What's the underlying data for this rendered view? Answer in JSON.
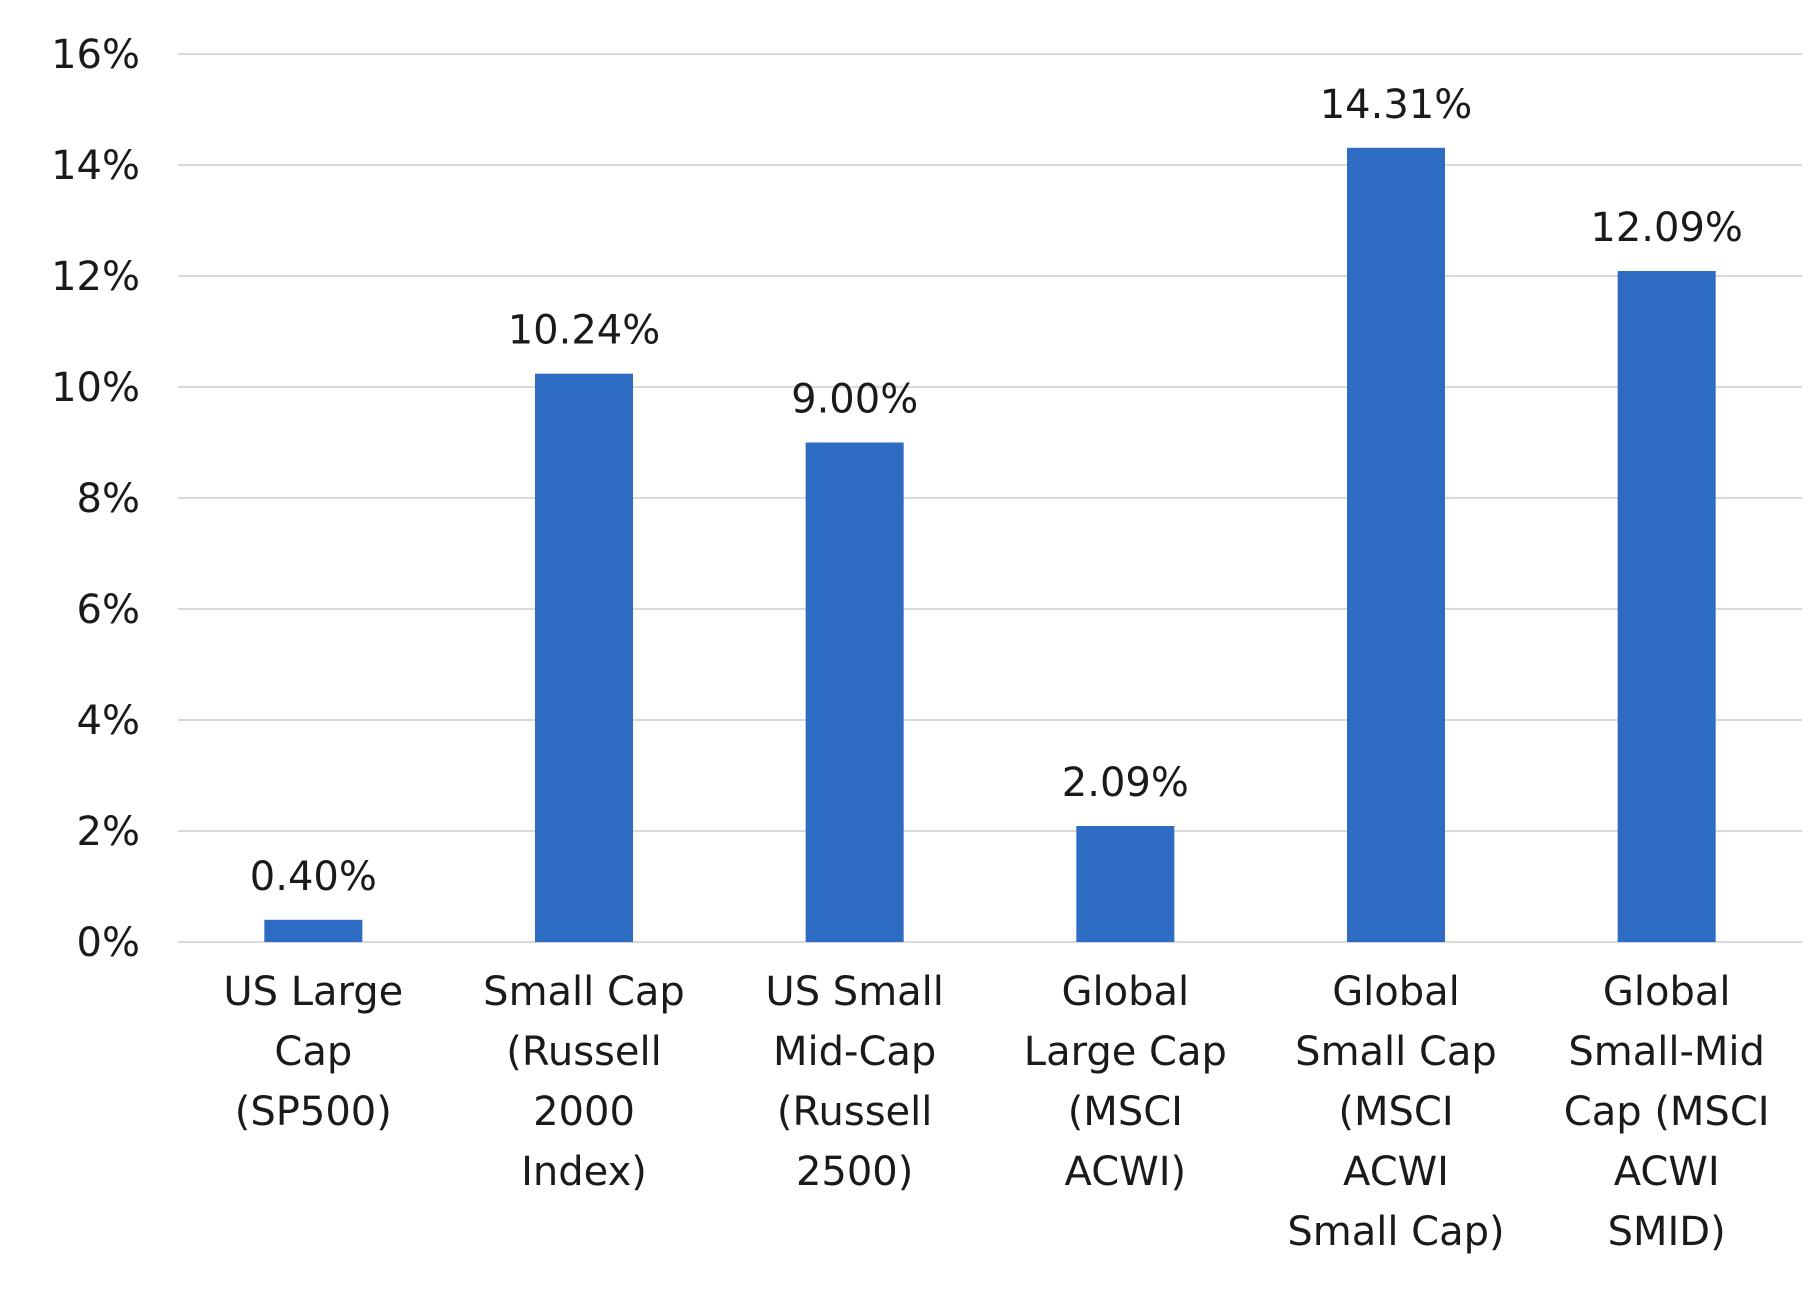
{
  "chart_data": {
    "type": "bar",
    "categories": [
      [
        "US Large",
        "Cap",
        "(SP500)"
      ],
      [
        "Small Cap",
        "(Russell",
        "2000",
        "Index)"
      ],
      [
        "US Small",
        "Mid-Cap",
        "(Russell",
        "2500)"
      ],
      [
        "Global",
        "Large Cap",
        "(MSCI",
        "ACWI)"
      ],
      [
        "Global",
        "Small Cap",
        "(MSCI",
        "ACWI",
        "Small Cap)"
      ],
      [
        "Global",
        "Small-Mid",
        "Cap (MSCI",
        "ACWI",
        "SMID)"
      ]
    ],
    "values": [
      0.4,
      10.24,
      9.0,
      2.09,
      14.31,
      12.09
    ],
    "data_labels": [
      "0.40%",
      "10.24%",
      "9.00%",
      "2.09%",
      "14.31%",
      "12.09%"
    ],
    "title": "",
    "xlabel": "",
    "ylabel": "",
    "ylim": [
      0,
      16
    ],
    "yticks": [
      0,
      2,
      4,
      6,
      8,
      10,
      12,
      14,
      16
    ],
    "ytick_labels": [
      "0%",
      "2%",
      "4%",
      "6%",
      "8%",
      "10%",
      "12%",
      "14%",
      "16%"
    ],
    "grid": true,
    "legend": "none",
    "bar_color": "#2e6bc2",
    "grid_color": "#d9d9d9",
    "text_color": "#1a1a1a"
  }
}
